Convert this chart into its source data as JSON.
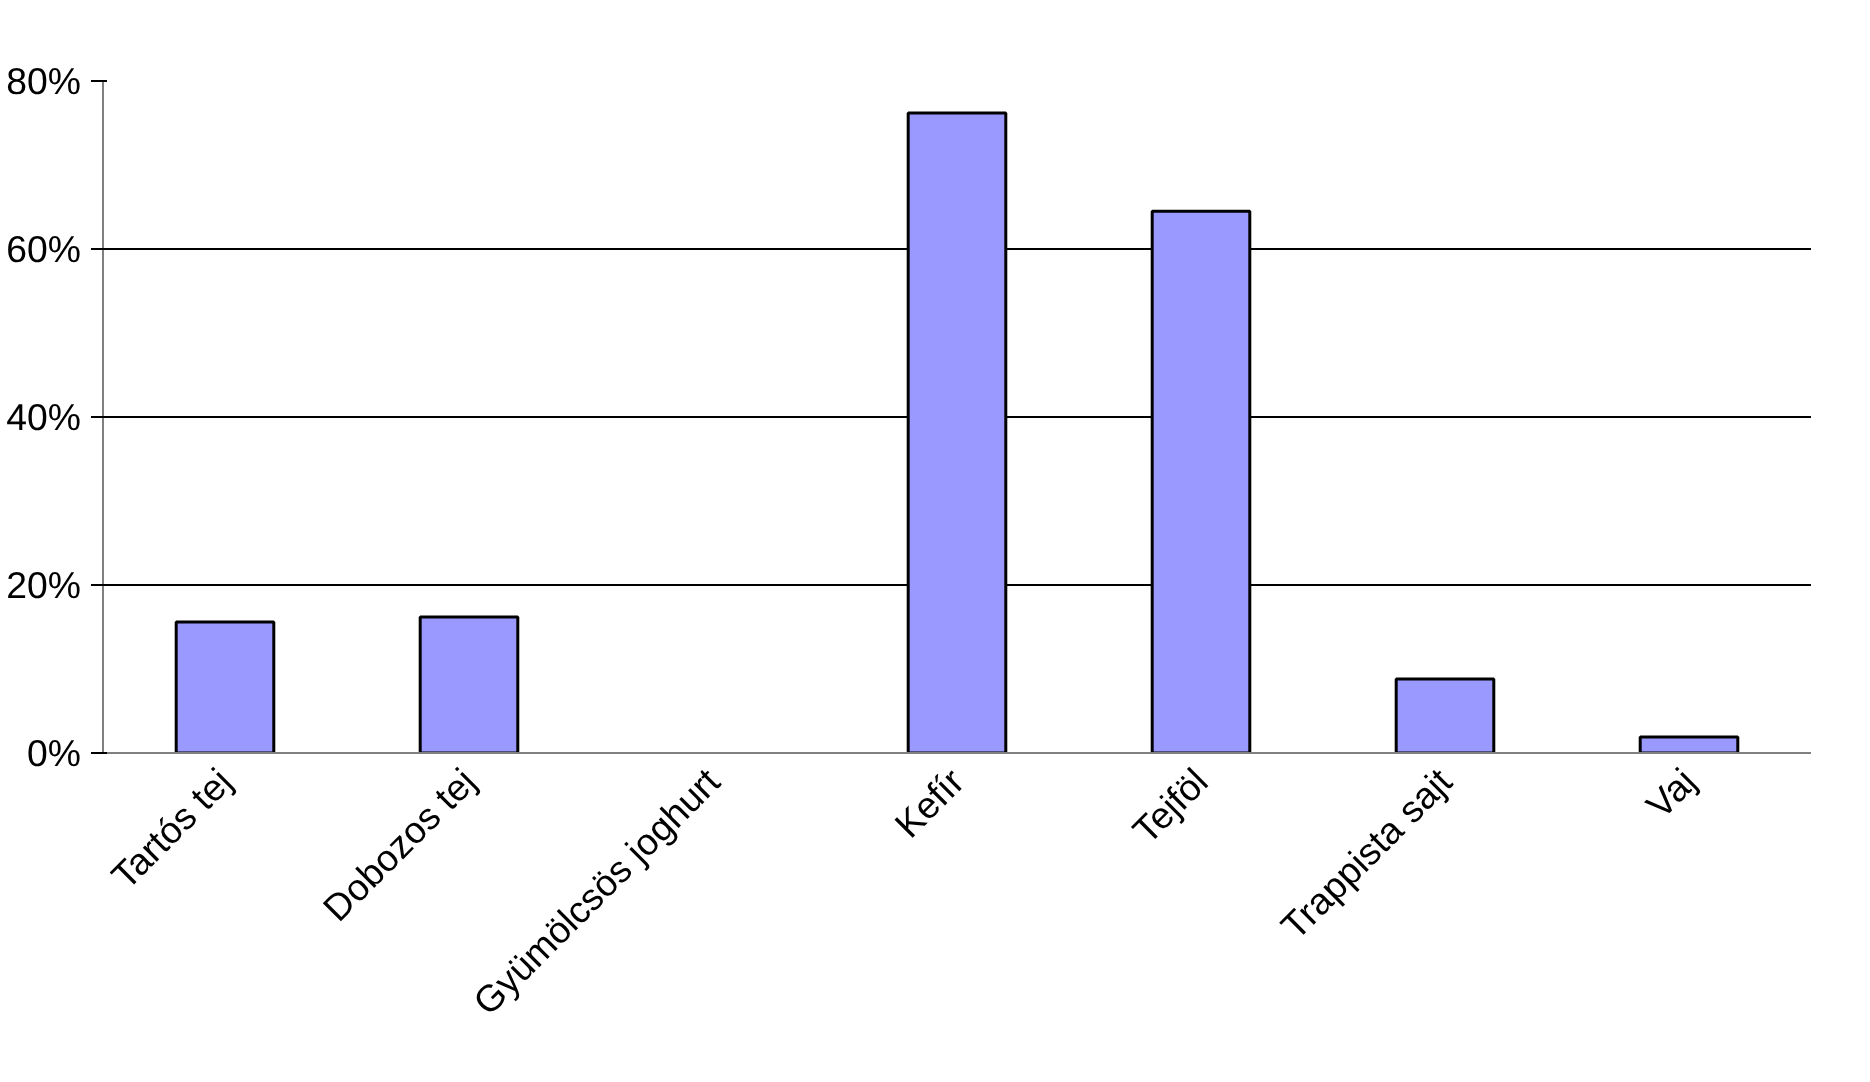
{
  "chart_data": {
    "type": "bar",
    "categories": [
      "Tartós tej",
      "Dobozos tej",
      "Gyümölcsös joghurt",
      "Kefír",
      "Tejföl",
      "Trappista sajt",
      "Vaj"
    ],
    "values": [
      15.6,
      16.2,
      0,
      76.2,
      64.5,
      8.8,
      1.9
    ],
    "color": "#9999ff",
    "ylim": [
      0,
      80
    ],
    "yticks": [
      {
        "value": 0,
        "label": "0%"
      },
      {
        "value": 20,
        "label": "20%"
      },
      {
        "value": 40,
        "label": "40%"
      },
      {
        "value": 60,
        "label": "60%"
      },
      {
        "value": 80,
        "label": "80%"
      }
    ],
    "grid": "y"
  }
}
